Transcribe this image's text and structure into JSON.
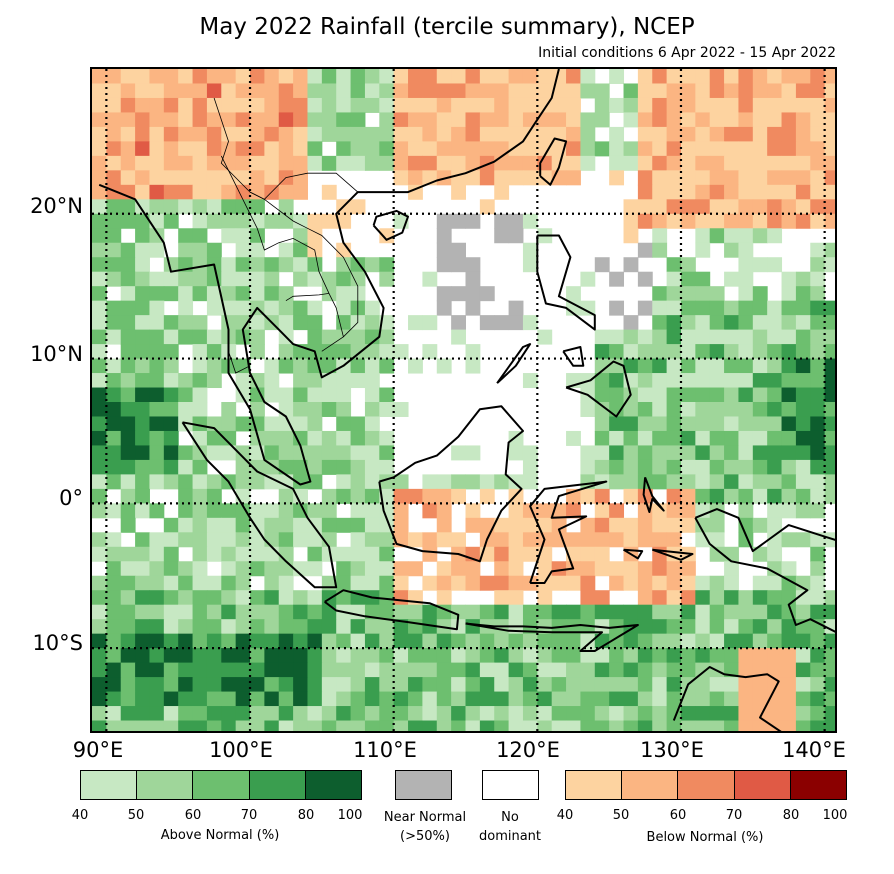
{
  "title": "May 2022 Rainfall (tercile summary), NCEP",
  "subtitle": "Initial conditions 6 Apr 2022 - 15 Apr 2022",
  "map": {
    "lon_range": [
      89,
      141
    ],
    "lat_range": [
      -16,
      30
    ],
    "lat_labels": [
      "20°N",
      "10°N",
      "0°",
      "10°S"
    ],
    "lon_labels": [
      "90°E",
      "100°E",
      "110°E",
      "120°E",
      "130°E",
      "140°E"
    ],
    "gridlines": "dotted"
  },
  "legend": {
    "above": {
      "caption": "Above Normal (%)",
      "ticks": [
        "40",
        "50",
        "60",
        "70",
        "80",
        "100"
      ],
      "colors": [
        "#c7e8c3",
        "#9fd69a",
        "#6dbf6f",
        "#3a9e4f",
        "#0d5e2e"
      ]
    },
    "near": {
      "caption_line1": "Near Normal",
      "caption_line2": "(>50%)",
      "color": "#b3b3b3"
    },
    "none": {
      "caption_line1": "No",
      "caption_line2": "dominant",
      "color": "#ffffff"
    },
    "below": {
      "caption": "Below Normal (%)",
      "ticks": [
        "40",
        "50",
        "60",
        "70",
        "80",
        "100"
      ],
      "colors": [
        "#fdd3a0",
        "#fbb582",
        "#f08a60",
        "#e05a45",
        "#8b0000"
      ]
    }
  }
}
